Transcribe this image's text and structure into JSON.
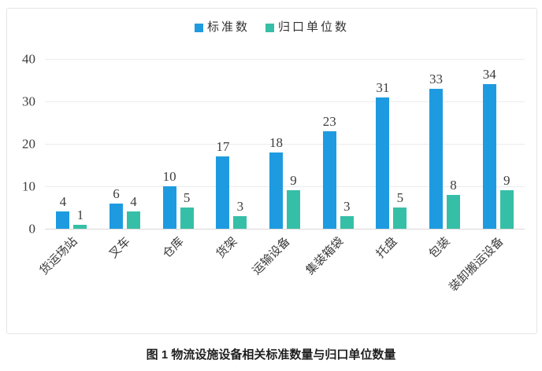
{
  "figure": {
    "caption": "图 1 物流设施设备相关标准数量与归口单位数量"
  },
  "colors": {
    "series_standards": "#1E9BE0",
    "series_units": "#36BFA7",
    "gridline": "#ECECEC",
    "axis_baseline": "#D8D8D8",
    "frame_border": "#E5E5E5",
    "text": "#3D3D3D"
  },
  "chart_data": {
    "type": "bar",
    "title": "",
    "xlabel": "",
    "ylabel": "",
    "categories": [
      "货运场站",
      "叉车",
      "仓库",
      "货架",
      "运输设备",
      "集装箱袋",
      "托盘",
      "包装",
      "装卸搬运设备"
    ],
    "series": [
      {
        "name": "标准数",
        "color": "#1E9BE0",
        "values": [
          4,
          6,
          10,
          17,
          18,
          23,
          31,
          33,
          34
        ]
      },
      {
        "name": "归口单位数",
        "color": "#36BFA7",
        "values": [
          1,
          4,
          5,
          3,
          9,
          3,
          5,
          8,
          9
        ]
      }
    ],
    "ylim": [
      0,
      40
    ],
    "yticks": [
      40,
      30,
      20,
      10,
      0
    ],
    "grid": true,
    "legend_position": "top-center",
    "value_labels": true,
    "x_label_rotation_deg": -45
  }
}
